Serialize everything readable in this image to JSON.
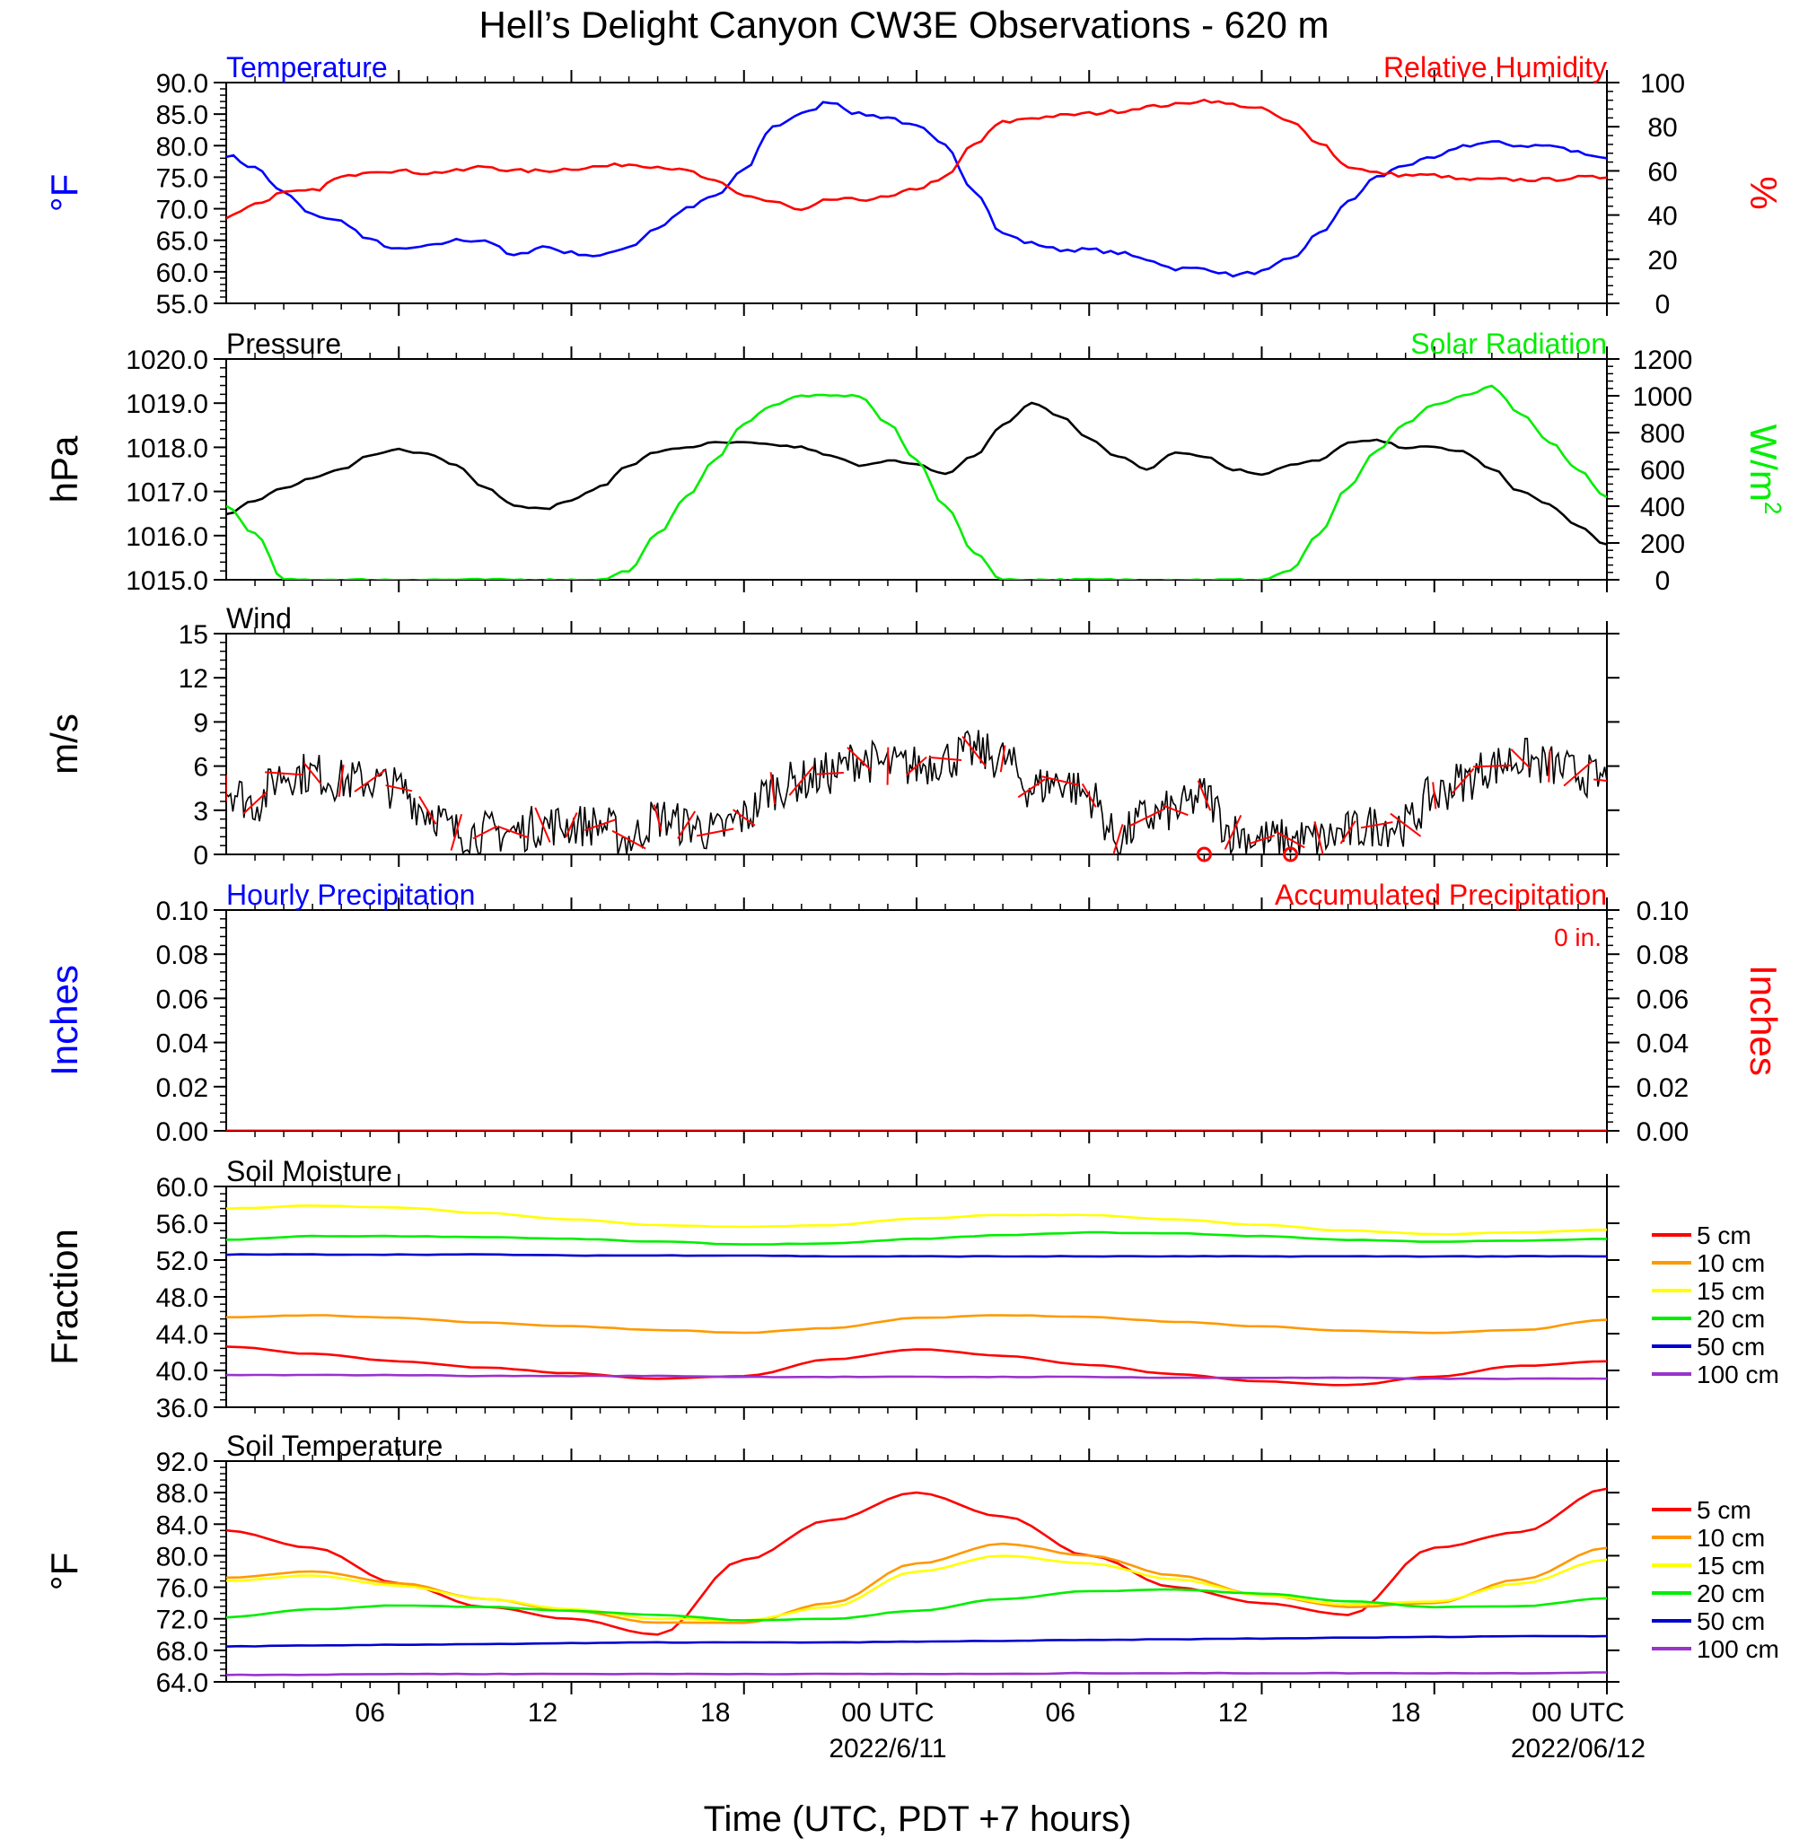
{
  "title": "Hell’s Delight Canyon CW3E Observations - 620 m",
  "x_axis": {
    "label": "Time (UTC, PDT +7 hours)",
    "ticks": [
      "06",
      "12",
      "18",
      "00 UTC",
      "06",
      "12",
      "18",
      "00 UTC"
    ],
    "dates": [
      "2022/6/11",
      "2022/06/12"
    ]
  },
  "colors": {
    "temperature": "#0000ff",
    "humidity": "#ff0000",
    "pressure": "#000000",
    "solar": "#00ee00",
    "wind_speed": "#000000",
    "wind_barb": "#ff0000",
    "precip_hourly": "#0000ff",
    "precip_accum": "#ff0000",
    "depth_5": "#ff0000",
    "depth_10": "#ff9900",
    "depth_15": "#ffff00",
    "depth_20": "#00ee00",
    "depth_50": "#0000cc",
    "depth_100": "#9933cc"
  },
  "chart_data": [
    {
      "type": "line",
      "left_title": "Temperature",
      "right_title": "Relative Humidity",
      "ylabel": "°F",
      "ylabel_right": "%",
      "ylim": [
        55,
        90
      ],
      "ylim_right": [
        0,
        100
      ],
      "yticks": [
        "90.0",
        "85.0",
        "80.0",
        "75.0",
        "70.0",
        "65.0",
        "60.0",
        "55.0"
      ],
      "yticks_right": [
        "100",
        "80",
        "60",
        "40",
        "20",
        "0"
      ],
      "x_hours": [
        0,
        1,
        2,
        3,
        4,
        5,
        6,
        7,
        8,
        9,
        10,
        11,
        12,
        13,
        14,
        15,
        16,
        17,
        18,
        19,
        20,
        21,
        22,
        23,
        24,
        25,
        26,
        27,
        28,
        29,
        30,
        31,
        32,
        33,
        34,
        35,
        36,
        37,
        38,
        39,
        40,
        41,
        42,
        43,
        44,
        45,
        46,
        47,
        48
      ],
      "series": [
        {
          "name": "Temperature",
          "axis": "left",
          "color_key": "temperature",
          "values": [
            78.5,
            76.5,
            72.5,
            69,
            68,
            65,
            63.5,
            64,
            65,
            65,
            62.5,
            64,
            63,
            62.5,
            64,
            67,
            70,
            72,
            76,
            83,
            85,
            87,
            85,
            84.5,
            83,
            80,
            73,
            66,
            64.5,
            63.5,
            63.5,
            63,
            62,
            60.5,
            60.5,
            59.5,
            60,
            62,
            66,
            71,
            75,
            77,
            78,
            80,
            80.5,
            80,
            80,
            79,
            78
          ]
        },
        {
          "name": "Relative Humidity",
          "axis": "right",
          "color_key": "humidity",
          "values": [
            39,
            45,
            50,
            51,
            57,
            60,
            60,
            59,
            60,
            62,
            60,
            60,
            61,
            62,
            63,
            62,
            60,
            55,
            49,
            46,
            42,
            47,
            47,
            48,
            52,
            57,
            72,
            82,
            84,
            85,
            86,
            87,
            89,
            90,
            92,
            90,
            88,
            82,
            73,
            62,
            59,
            58,
            58,
            56,
            56,
            56,
            56,
            57,
            57
          ]
        }
      ]
    },
    {
      "type": "line",
      "left_title": "Pressure",
      "right_title": "Solar Radiation",
      "ylabel": "hPa",
      "ylabel_right": "W/m",
      "ylabel_right_sup": "2",
      "ylim": [
        1015,
        1020
      ],
      "ylim_right": [
        0,
        1200
      ],
      "yticks": [
        "1020.0",
        "1019.0",
        "1018.0",
        "1017.0",
        "1016.0",
        "1015.0"
      ],
      "yticks_right": [
        "1200",
        "1000",
        "800",
        "600",
        "400",
        "200",
        "0"
      ],
      "x_hours": [
        0,
        1,
        2,
        3,
        4,
        5,
        6,
        7,
        8,
        9,
        10,
        11,
        12,
        13,
        14,
        15,
        16,
        17,
        18,
        19,
        20,
        21,
        22,
        23,
        24,
        25,
        26,
        27,
        28,
        29,
        30,
        31,
        32,
        33,
        34,
        35,
        36,
        37,
        38,
        39,
        40,
        41,
        42,
        43,
        44,
        45,
        46,
        47,
        48
      ],
      "series": [
        {
          "name": "Pressure",
          "axis": "left",
          "color_key": "pressure",
          "values": [
            1016.5,
            1016.8,
            1017.1,
            1017.3,
            1017.5,
            1017.8,
            1017.95,
            1017.85,
            1017.6,
            1017.1,
            1016.7,
            1016.6,
            1016.8,
            1017.1,
            1017.6,
            1017.9,
            1018.0,
            1018.1,
            1018.1,
            1018.05,
            1018.0,
            1017.8,
            1017.6,
            1017.7,
            1017.6,
            1017.4,
            1017.8,
            1018.5,
            1019.0,
            1018.7,
            1018.2,
            1017.8,
            1017.5,
            1017.9,
            1017.8,
            1017.5,
            1017.4,
            1017.6,
            1017.7,
            1018.1,
            1018.15,
            1018.0,
            1018.0,
            1017.9,
            1017.5,
            1017.0,
            1016.7,
            1016.2,
            1015.8
          ]
        },
        {
          "name": "Solar Radiation",
          "axis": "right",
          "color_key": "solar",
          "values": [
            400,
            250,
            0,
            0,
            0,
            0,
            0,
            0,
            0,
            0,
            0,
            0,
            0,
            0,
            50,
            250,
            450,
            650,
            850,
            950,
            1000,
            1000,
            1000,
            850,
            650,
            400,
            150,
            0,
            0,
            0,
            0,
            0,
            0,
            0,
            0,
            0,
            0,
            50,
            250,
            500,
            700,
            850,
            950,
            1000,
            1050,
            900,
            750,
            600,
            450
          ]
        }
      ]
    },
    {
      "type": "line",
      "left_title": "Wind",
      "ylabel": "m/s",
      "ylim": [
        0,
        15
      ],
      "yticks": [
        "15",
        "12",
        "9",
        "6",
        "3",
        "0"
      ],
      "x_hours": [
        0,
        1,
        2,
        3,
        4,
        5,
        6,
        7,
        8,
        9,
        10,
        11,
        12,
        13,
        14,
        15,
        16,
        17,
        18,
        19,
        20,
        21,
        22,
        23,
        24,
        25,
        26,
        27,
        28,
        29,
        30,
        31,
        32,
        33,
        34,
        35,
        36,
        37,
        38,
        39,
        40,
        41,
        42,
        43,
        44,
        45,
        46,
        47,
        48
      ],
      "series": [
        {
          "name": "Wind speed",
          "axis": "left",
          "color_key": "wind_speed",
          "values": [
            4.5,
            3.5,
            5.5,
            5.5,
            5.0,
            5.0,
            4.5,
            3.0,
            1.5,
            1.5,
            1.5,
            2.0,
            2.0,
            2.0,
            1.0,
            2.5,
            2.0,
            1.5,
            2.5,
            4.5,
            5.0,
            5.5,
            6.5,
            6.0,
            6.0,
            6.5,
            7.0,
            6.5,
            4.5,
            5.0,
            4.0,
            1.0,
            2.5,
            3.0,
            4.0,
            1.5,
            1.0,
            1.0,
            1.0,
            1.5,
            2.0,
            2.0,
            4.0,
            5.0,
            6.0,
            6.5,
            6.0,
            5.5,
            5.0
          ]
        }
      ],
      "calm_hours": [
        34,
        37
      ]
    },
    {
      "type": "line",
      "left_title": "Hourly Precipitation",
      "right_title": "Accumulated Precipitation",
      "annotation": "0 in.",
      "ylabel": "Inches",
      "ylabel_right": "Inches",
      "ylim": [
        0,
        0.1
      ],
      "ylim_right": [
        0,
        0.1
      ],
      "yticks": [
        "0.10",
        "0.08",
        "0.06",
        "0.04",
        "0.02",
        "0.00"
      ],
      "yticks_right": [
        "0.10",
        "0.08",
        "0.06",
        "0.04",
        "0.02",
        "0.00"
      ],
      "x_hours": [
        0,
        48
      ],
      "series": [
        {
          "name": "Hourly Precipitation",
          "axis": "left",
          "color_key": "precip_hourly",
          "values": [
            0,
            0
          ]
        },
        {
          "name": "Accumulated Precipitation",
          "axis": "right",
          "color_key": "precip_accum",
          "values": [
            0,
            0
          ]
        }
      ]
    },
    {
      "type": "line",
      "left_title": "Soil Moisture",
      "ylabel": "Fraction",
      "ylim": [
        36,
        60
      ],
      "yticks": [
        "60.0",
        "56.0",
        "52.0",
        "48.0",
        "44.0",
        "40.0",
        "36.0"
      ],
      "legend": [
        "5 cm",
        "10 cm",
        "15 cm",
        "20 cm",
        "50 cm",
        "100 cm"
      ],
      "x_hours": [
        0,
        3,
        6,
        9,
        12,
        15,
        18,
        21,
        24,
        27,
        30,
        33,
        36,
        39,
        42,
        45,
        48
      ],
      "series": [
        {
          "name": "5 cm",
          "color_key": "depth_5",
          "values": [
            42.6,
            41.8,
            41.0,
            40.3,
            39.7,
            39.1,
            39.4,
            41.2,
            42.3,
            41.6,
            40.6,
            39.6,
            38.8,
            38.4,
            39.3,
            40.5,
            41.0
          ]
        },
        {
          "name": "10 cm",
          "color_key": "depth_10",
          "values": [
            45.8,
            46.0,
            45.7,
            45.2,
            44.8,
            44.4,
            44.1,
            44.6,
            45.7,
            46.0,
            45.8,
            45.3,
            44.8,
            44.3,
            44.1,
            44.4,
            45.5
          ]
        },
        {
          "name": "15 cm",
          "color_key": "depth_15",
          "values": [
            57.6,
            57.9,
            57.7,
            57.1,
            56.4,
            55.8,
            55.6,
            55.8,
            56.5,
            56.9,
            56.9,
            56.4,
            55.8,
            55.2,
            54.8,
            55.0,
            55.3
          ]
        },
        {
          "name": "20 cm",
          "color_key": "depth_20",
          "values": [
            54.2,
            54.6,
            54.6,
            54.5,
            54.3,
            54.0,
            53.7,
            53.8,
            54.3,
            54.7,
            55.0,
            54.9,
            54.6,
            54.2,
            54.0,
            54.1,
            54.3
          ]
        },
        {
          "name": "50 cm",
          "color_key": "depth_50",
          "values": [
            52.6,
            52.6,
            52.6,
            52.6,
            52.5,
            52.5,
            52.5,
            52.4,
            52.4,
            52.4,
            52.4,
            52.4,
            52.4,
            52.4,
            52.4,
            52.4,
            52.4
          ]
        },
        {
          "name": "100 cm",
          "color_key": "depth_100",
          "values": [
            39.5,
            39.5,
            39.5,
            39.4,
            39.4,
            39.4,
            39.3,
            39.3,
            39.3,
            39.3,
            39.3,
            39.2,
            39.2,
            39.2,
            39.1,
            39.1,
            39.1
          ]
        }
      ]
    },
    {
      "type": "line",
      "left_title": "Soil Temperature",
      "ylabel": "°F",
      "ylim": [
        64,
        92
      ],
      "yticks": [
        "92.0",
        "88.0",
        "84.0",
        "80.0",
        "76.0",
        "72.0",
        "68.0",
        "64.0"
      ],
      "legend": [
        "5 cm",
        "10 cm",
        "15 cm",
        "20 cm",
        "50 cm",
        "100 cm"
      ],
      "x_hours": [
        0,
        3,
        6,
        9,
        12,
        15,
        18,
        21,
        24,
        27,
        30,
        33,
        36,
        39,
        42,
        45,
        48
      ],
      "series": [
        {
          "name": "5 cm",
          "color_key": "depth_5",
          "values": [
            83.2,
            81.0,
            76.5,
            73.5,
            72.0,
            70.0,
            79.5,
            84.5,
            88.0,
            85.0,
            80.0,
            76.0,
            74.0,
            72.5,
            81.0,
            83.0,
            88.5
          ]
        },
        {
          "name": "10 cm",
          "color_key": "depth_10",
          "values": [
            77.2,
            78.0,
            76.5,
            74.5,
            73.0,
            71.5,
            71.5,
            74.0,
            79.0,
            81.5,
            80.0,
            77.5,
            75.0,
            73.5,
            74.0,
            77.0,
            81.0
          ]
        },
        {
          "name": "15 cm",
          "color_key": "depth_15",
          "values": [
            76.8,
            77.5,
            76.2,
            74.5,
            73.2,
            72.0,
            71.8,
            73.5,
            78.0,
            80.0,
            79.0,
            77.0,
            75.0,
            73.8,
            74.2,
            76.5,
            79.5
          ]
        },
        {
          "name": "20 cm",
          "color_key": "depth_20",
          "values": [
            72.2,
            73.2,
            73.7,
            73.5,
            73.0,
            72.5,
            71.8,
            72.0,
            73.0,
            74.5,
            75.5,
            75.7,
            75.2,
            74.2,
            73.5,
            73.6,
            74.6
          ]
        },
        {
          "name": "50 cm",
          "color_key": "depth_50",
          "values": [
            68.5,
            68.6,
            68.7,
            68.8,
            68.9,
            69.0,
            69.0,
            69.0,
            69.1,
            69.2,
            69.3,
            69.4,
            69.5,
            69.6,
            69.7,
            69.8,
            69.8
          ]
        },
        {
          "name": "100 cm",
          "color_key": "depth_100",
          "values": [
            64.9,
            64.9,
            65.0,
            65.0,
            65.0,
            65.0,
            65.0,
            65.0,
            65.0,
            65.0,
            65.1,
            65.1,
            65.1,
            65.1,
            65.1,
            65.1,
            65.2
          ]
        }
      ]
    }
  ]
}
